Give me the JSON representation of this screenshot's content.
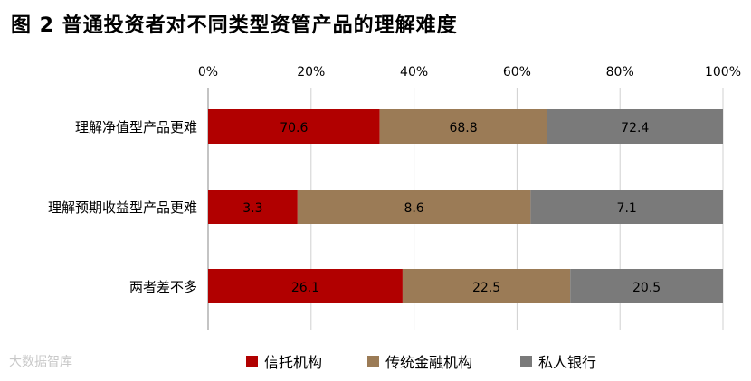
{
  "title": "图 2  普通投资者对不同类型资管产品的理解难度",
  "watermark": "大数据智库",
  "chart_data": {
    "type": "bar",
    "orientation": "horizontal",
    "stacked": true,
    "normalized": true,
    "categories": [
      "理解净值型产品更难",
      "理解预期收益型产品更难",
      "两者差不多"
    ],
    "series": [
      {
        "name": "信托机构",
        "color": "#b10000",
        "values": [
          70.6,
          3.3,
          26.1
        ]
      },
      {
        "name": "传统金融机构",
        "color": "#9b7b56",
        "values": [
          68.8,
          8.6,
          22.5
        ]
      },
      {
        "name": "私人银行",
        "color": "#7a7a7a",
        "values": [
          72.4,
          7.1,
          20.5
        ]
      }
    ],
    "x_ticks": [
      "0%",
      "20%",
      "40%",
      "60%",
      "80%",
      "100%"
    ],
    "xlim": [
      0,
      100
    ],
    "grid": true,
    "legend_position": "bottom"
  }
}
